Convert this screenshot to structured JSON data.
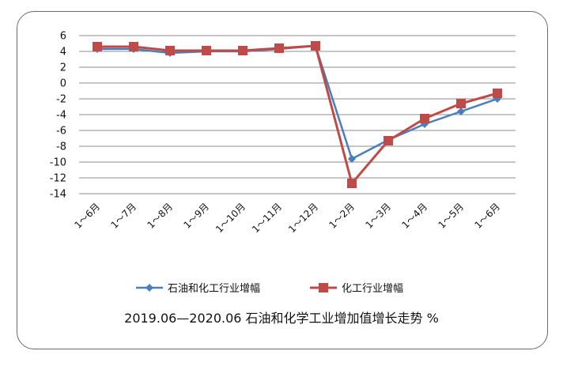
{
  "chart_data": {
    "type": "line",
    "title": "2019.06—2020.06 石油和化学工业增加值增长走势  %",
    "xlabel": "",
    "ylabel": "",
    "ylim": [
      -14,
      6
    ],
    "yticks": [
      6,
      4,
      2,
      0,
      -2,
      -4,
      -6,
      -8,
      -10,
      -12,
      -14
    ],
    "grid": true,
    "legend_position": "bottom",
    "categories": [
      "1～6月",
      "1～7月",
      "1～8月",
      "1～9月",
      "1～10月",
      "1～11月",
      "1～12月",
      "1～2月",
      "1～3月",
      "1～4月",
      "1～5月",
      "1～6月"
    ],
    "series": [
      {
        "name": "石油和化工行业增幅",
        "color": "#4a7ebb",
        "marker": "diamond",
        "values": [
          4.3,
          4.3,
          3.8,
          4.0,
          4.0,
          4.3,
          4.7,
          -9.6,
          -7.2,
          -5.2,
          -3.6,
          -2.0
        ]
      },
      {
        "name": "化工行业增幅",
        "color": "#be4b48",
        "marker": "square",
        "values": [
          4.6,
          4.6,
          4.1,
          4.1,
          4.1,
          4.4,
          4.7,
          -12.7,
          -7.3,
          -4.5,
          -2.6,
          -1.3
        ]
      }
    ]
  }
}
